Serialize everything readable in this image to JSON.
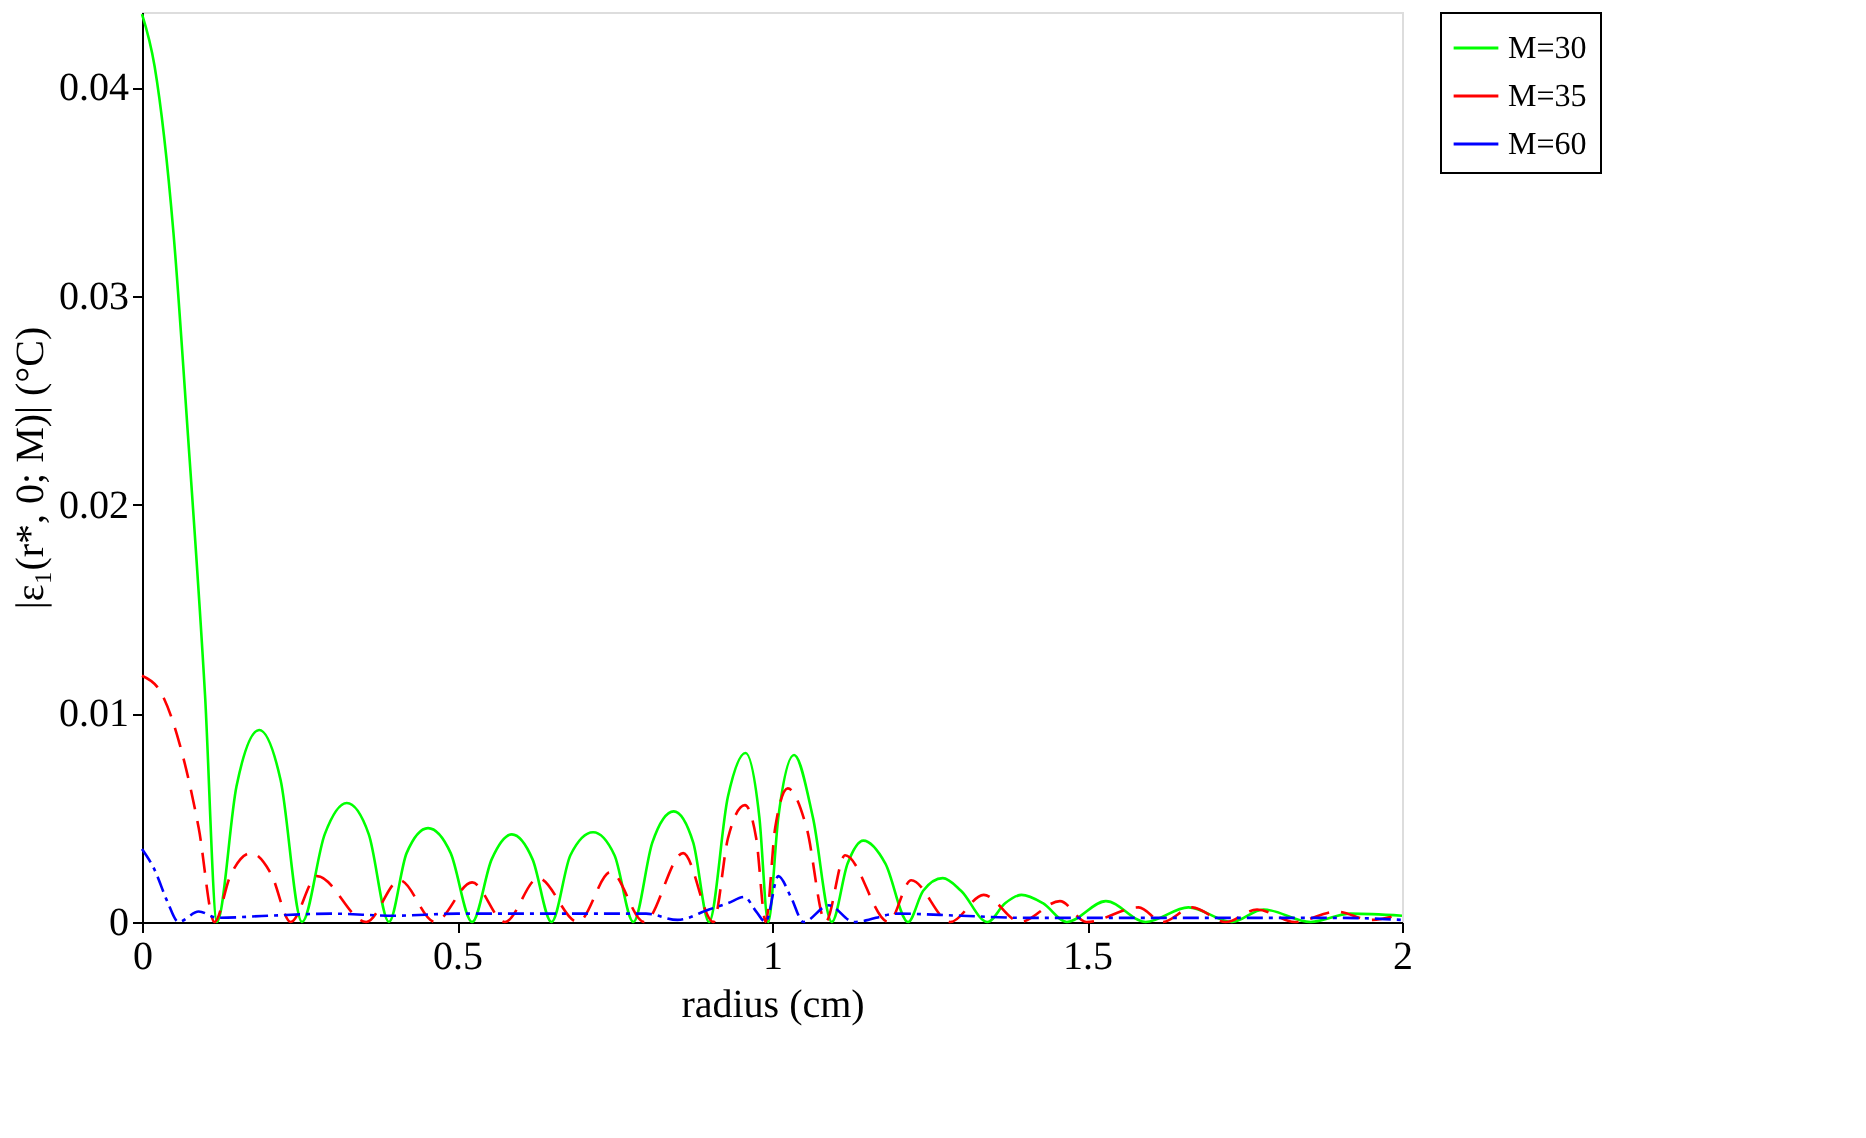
{
  "chart_data": {
    "type": "line",
    "xlabel": "radius (cm)",
    "ylabel": "|ε₁(r*, 0; M)| (°C)",
    "xlim": [
      0,
      2
    ],
    "xticks": [
      0,
      0.5,
      1,
      1.5,
      2
    ],
    "ylim": [
      0,
      0.0436
    ],
    "yticks": [
      0,
      0.01,
      0.02,
      0.03,
      0.04
    ],
    "grid": false,
    "legend": "right",
    "marker": "none",
    "series": [
      {
        "name": "M=30",
        "color": "#00ff00",
        "line_style": "solid",
        "x": [
          0,
          0.02,
          0.05,
          0.073,
          0.1,
          0.119,
          0.15,
          0.186,
          0.22,
          0.254,
          0.29,
          0.325,
          0.36,
          0.392,
          0.42,
          0.454,
          0.49,
          0.524,
          0.555,
          0.587,
          0.62,
          0.65,
          0.68,
          0.716,
          0.75,
          0.78,
          0.81,
          0.844,
          0.875,
          0.9,
          0.93,
          0.958,
          0.98,
          0.994,
          1.01,
          1.035,
          1.065,
          1.095,
          1.12,
          1.145,
          1.18,
          1.216,
          1.24,
          1.271,
          1.3,
          1.342,
          1.37,
          1.396,
          1.43,
          1.468,
          1.53,
          1.593,
          1.661,
          1.73,
          1.78,
          1.855,
          1.918,
          2
        ],
        "values": [
          0.0435,
          0.041,
          0.033,
          0.0233,
          0.0109,
          0,
          0.0065,
          0.0092,
          0.0068,
          0,
          0.0042,
          0.0057,
          0.0042,
          0,
          0.0033,
          0.0045,
          0.0033,
          0,
          0.003,
          0.0042,
          0.003,
          0,
          0.0032,
          0.0043,
          0.0032,
          0,
          0.0038,
          0.0053,
          0.0038,
          0,
          0.006,
          0.0081,
          0.005,
          0,
          0.005,
          0.008,
          0.005,
          0,
          0.0028,
          0.0039,
          0.0028,
          0,
          0.0015,
          0.0021,
          0.0015,
          0,
          0.0009,
          0.0013,
          0.0009,
          0,
          0.001,
          0,
          0.0007,
          0,
          0.0006,
          0,
          0.0004,
          0.0003
        ]
      },
      {
        "name": "M=35",
        "color": "#ff0000",
        "line_style": "dashed",
        "x": [
          0,
          0.03,
          0.06,
          0.09,
          0.115,
          0.14,
          0.173,
          0.205,
          0.236,
          0.278,
          0.356,
          0.409,
          0.465,
          0.524,
          0.576,
          0.629,
          0.692,
          0.744,
          0.797,
          0.859,
          0.907,
          0.93,
          0.957,
          0.975,
          0.99,
          1.005,
          1.025,
          1.055,
          1.085,
          1.116,
          1.185,
          1.221,
          1.283,
          1.336,
          1.394,
          1.457,
          1.499,
          1.582,
          1.62,
          1.667,
          1.72,
          1.77,
          1.83,
          1.896,
          1.95,
          2
        ],
        "values": [
          0.0118,
          0.011,
          0.0085,
          0.0045,
          0,
          0.0022,
          0.0033,
          0.0023,
          0,
          0.0022,
          0,
          0.002,
          0,
          0.0019,
          0,
          0.0021,
          0,
          0.0024,
          0,
          0.0033,
          0,
          0.004,
          0.0056,
          0.004,
          0,
          0.0045,
          0.0064,
          0.0045,
          0,
          0.0032,
          0,
          0.002,
          0,
          0.0013,
          0,
          0.001,
          0,
          0.0007,
          0,
          0.0007,
          0,
          0.0006,
          0,
          0.0005,
          0.0001,
          0.0004
        ]
      },
      {
        "name": "M=60",
        "color": "#0000ff",
        "line_style": "dashdot",
        "x": [
          0,
          0.02,
          0.04,
          0.058,
          0.09,
          0.12,
          0.2,
          0.3,
          0.4,
          0.5,
          0.6,
          0.7,
          0.8,
          0.85,
          0.9,
          0.93,
          0.956,
          0.975,
          0.99,
          1.01,
          1.03,
          1.05,
          1.09,
          1.13,
          1.2,
          1.3,
          1.4,
          1.5,
          1.6,
          1.7,
          1.8,
          1.9,
          2
        ],
        "values": [
          0.0035,
          0.0025,
          0.001,
          0,
          0.0005,
          0.0002,
          0.0003,
          0.0004,
          0.0003,
          0.0004,
          0.0004,
          0.0004,
          0.0004,
          0.0001,
          0.0006,
          0.0009,
          0.0012,
          0.0005,
          0,
          0.0022,
          0.0012,
          0,
          0.0008,
          0,
          0.0004,
          0.0003,
          0.0002,
          0.0002,
          0.0002,
          0.0002,
          0.0002,
          0.0002,
          0.0001
        ]
      }
    ]
  }
}
